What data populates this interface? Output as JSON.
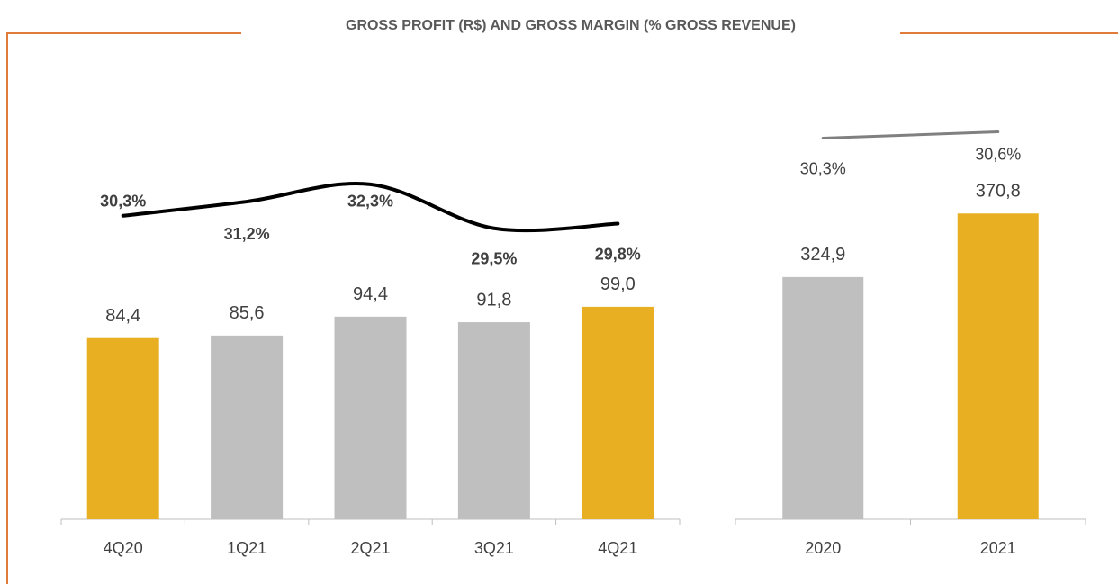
{
  "title": "GROSS PROFIT (R$) AND GROSS MARGIN (% GROSS REVENUE)",
  "chart_data": [
    {
      "type": "bar",
      "categories": [
        "4Q20",
        "1Q21",
        "2Q21",
        "3Q21",
        "4Q21"
      ],
      "ylim": [
        0,
        200
      ],
      "y2lim": [
        11,
        38.3
      ],
      "series": [
        {
          "values": [
            84.4,
            85.6,
            94.4,
            91.8,
            99.0
          ],
          "value_labels": [
            "84,4",
            "85,6",
            "94,4",
            "91,8",
            "99,0"
          ],
          "colors": [
            "#E9AF23",
            "#BFBFBF",
            "#BFBFBF",
            "#BFBFBF",
            "#E9AF23"
          ]
        },
        {
          "type": "line",
          "axis": "y2",
          "color": "#000000",
          "values": [
            30.3,
            31.2,
            32.3,
            29.5,
            29.8
          ],
          "value_labels": [
            "30,3%",
            "31,2%",
            "32,3%",
            "29,5%",
            "29,8%"
          ]
        }
      ]
    },
    {
      "type": "bar",
      "categories": [
        "2020",
        "2021"
      ],
      "ylim": [
        150,
        460
      ],
      "y2lim": [
        12.1,
        32.6
      ],
      "series": [
        {
          "values": [
            324.9,
            370.8
          ],
          "value_labels": [
            "324,9",
            "370,8"
          ],
          "colors": [
            "#BFBFBF",
            "#E9AF23"
          ]
        },
        {
          "type": "line",
          "axis": "y2",
          "color": "#808080",
          "values": [
            30.3,
            30.6
          ],
          "value_labels": [
            "30,3%",
            "30,6%"
          ]
        }
      ]
    }
  ]
}
